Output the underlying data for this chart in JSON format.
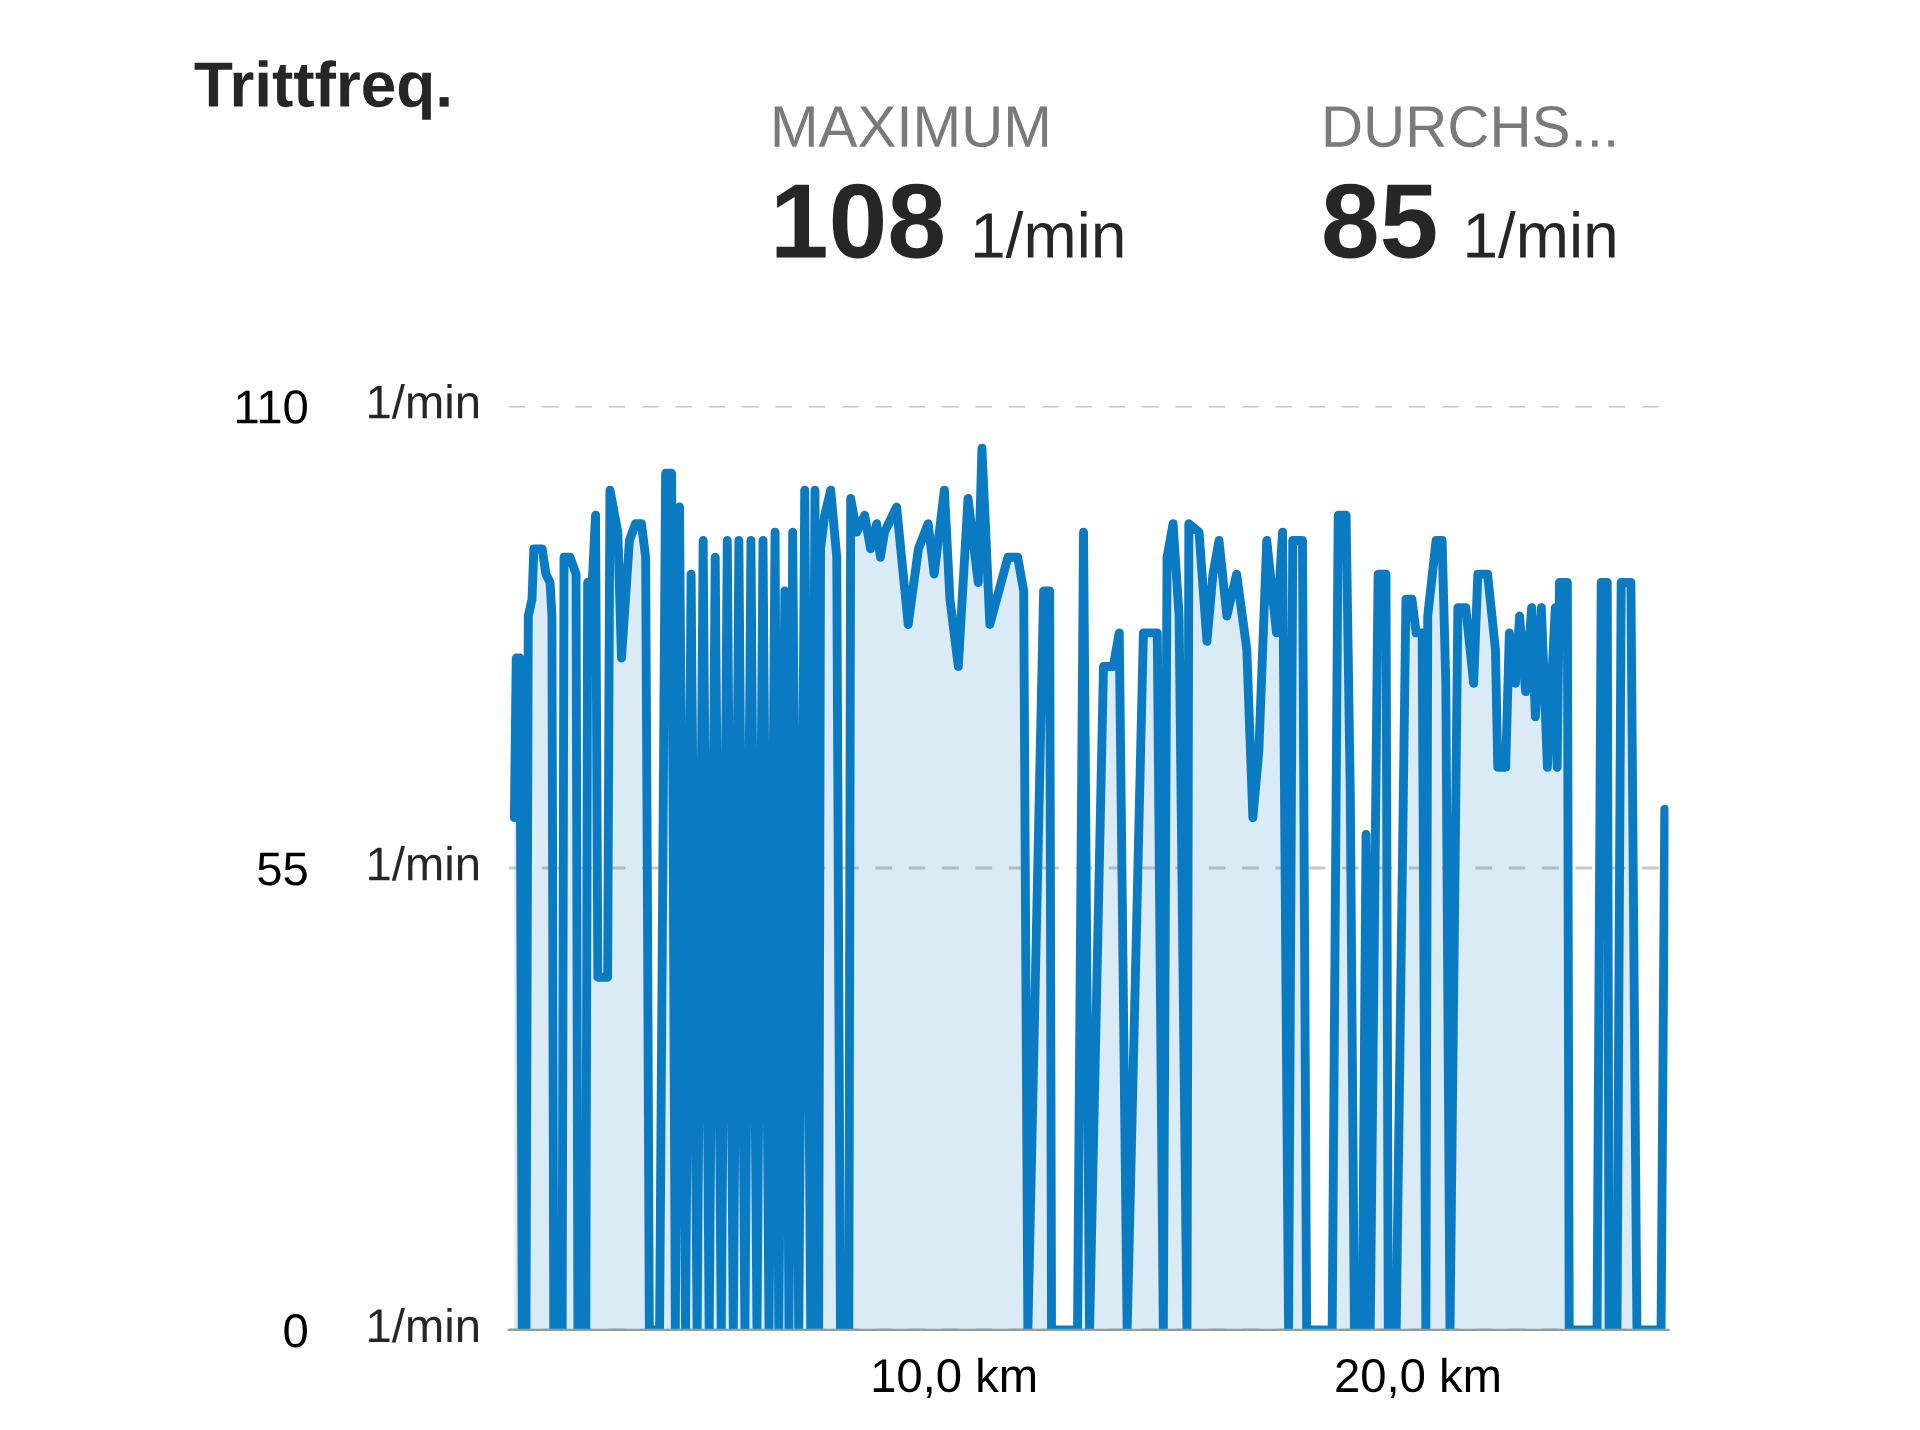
{
  "chart_data": {
    "type": "area",
    "title": "Trittfreq.",
    "annotations": [
      "MAXIMUM",
      "108 1/min",
      "DURCHS...",
      "85 1/min"
    ],
    "series": [
      {
        "color": "#0a7bc2",
        "x": [
          0.52,
          0.56,
          0.64,
          0.69,
          0.77,
          0.82,
          0.9,
          0.94,
          1.12,
          1.2,
          1.29,
          1.33,
          1.37,
          1.55,
          1.59,
          1.72,
          1.85,
          1.89,
          2.06,
          2.1,
          2.19,
          2.27,
          2.32,
          2.53,
          2.58,
          2.75,
          2.83,
          3.0,
          3.13,
          3.26,
          3.35,
          3.39,
          3.43,
          3.65,
          3.78,
          3.91,
          3.99,
          4.08,
          4.21,
          4.33,
          4.46,
          4.59,
          4.72,
          4.85,
          4.98,
          5.11,
          5.24,
          5.36,
          5.49,
          5.62,
          5.75,
          5.88,
          6.01,
          6.14,
          6.22,
          6.35,
          6.44,
          6.52,
          6.65,
          6.78,
          6.91,
          7.0,
          7.08,
          7.12,
          7.21,
          7.34,
          7.47,
          7.55,
          7.73,
          7.77,
          7.9,
          8.07,
          8.2,
          8.33,
          8.41,
          8.5,
          8.76,
          9.01,
          9.23,
          9.44,
          9.57,
          9.79,
          9.91,
          10.09,
          10.3,
          10.52,
          10.6,
          10.77,
          11.16,
          11.37,
          11.5,
          11.59,
          11.93,
          12.06,
          12.1,
          12.66,
          12.79,
          12.92,
          13.22,
          13.43,
          13.56,
          13.73,
          14.08,
          14.38,
          14.51,
          14.59,
          14.72,
          14.85,
          15.02,
          15.06,
          15.28,
          15.45,
          15.58,
          15.71,
          15.88,
          16.09,
          16.31,
          16.44,
          16.57,
          16.74,
          16.95,
          17.08,
          17.21,
          17.3,
          17.51,
          17.6,
          18.15,
          18.28,
          18.45,
          18.54,
          18.63,
          18.8,
          18.88,
          18.97,
          19.14,
          19.31,
          19.36,
          19.53,
          19.74,
          19.87,
          19.96,
          20.09,
          20.17,
          20.21,
          20.39,
          20.52,
          20.6,
          20.69,
          20.86,
          21.03,
          21.2,
          21.29,
          21.5,
          21.67,
          21.72,
          21.89,
          21.97,
          22.1,
          22.19,
          22.32,
          22.45,
          22.53,
          22.66,
          22.79,
          22.96,
          23.0,
          23.05,
          23.22,
          23.26,
          23.86,
          23.95,
          24.08,
          24.12,
          24.29,
          24.38,
          24.59,
          24.72,
          25.24,
          25.32
        ],
        "values": [
          61,
          80,
          80,
          0,
          0,
          85,
          87,
          93,
          93,
          90,
          89,
          85,
          0,
          0,
          92,
          92,
          90,
          0,
          0,
          89,
          88,
          97,
          42,
          42,
          100,
          95,
          80,
          94,
          96,
          96,
          92,
          50,
          0,
          0,
          102,
          102,
          0,
          98,
          0,
          90,
          0,
          94,
          0,
          92,
          0,
          94,
          0,
          94,
          0,
          94,
          0,
          94,
          0,
          95,
          0,
          88,
          0,
          95,
          0,
          100,
          0,
          100,
          0,
          93,
          97,
          100,
          92,
          0,
          0,
          99,
          95,
          97,
          93,
          96,
          92,
          95,
          98,
          84,
          93,
          96,
          90,
          100,
          87,
          79,
          99,
          89,
          105,
          84,
          92,
          92,
          88,
          0,
          88,
          88,
          0,
          0,
          95,
          0,
          79,
          79,
          83,
          0,
          83,
          83,
          0,
          92,
          96,
          85,
          0,
          96,
          95,
          82,
          90,
          94,
          85,
          90,
          81,
          61,
          69,
          94,
          83,
          95,
          0,
          94,
          94,
          0,
          0,
          97,
          97,
          64,
          0,
          0,
          59,
          0,
          90,
          90,
          0,
          0,
          87,
          87,
          83,
          83,
          0,
          85,
          94,
          94,
          77,
          0,
          86,
          86,
          77,
          90,
          90,
          81,
          67,
          67,
          83,
          77,
          85,
          76,
          86,
          73,
          86,
          67,
          86,
          67,
          89,
          89,
          0,
          0,
          89,
          89,
          0,
          0,
          89,
          89,
          0,
          0,
          62
        ]
      }
    ],
    "xlim": [
      0.4,
      25.4
    ],
    "ylim": [
      0,
      110
    ],
    "xticks": [
      {
        "value": 10,
        "label": "10,0 km"
      },
      {
        "value": 20,
        "label": "20,0 km"
      }
    ],
    "yticks": [
      0,
      55,
      110
    ],
    "ylabel": "1/min",
    "grid": "y",
    "line_style": "solid"
  }
}
